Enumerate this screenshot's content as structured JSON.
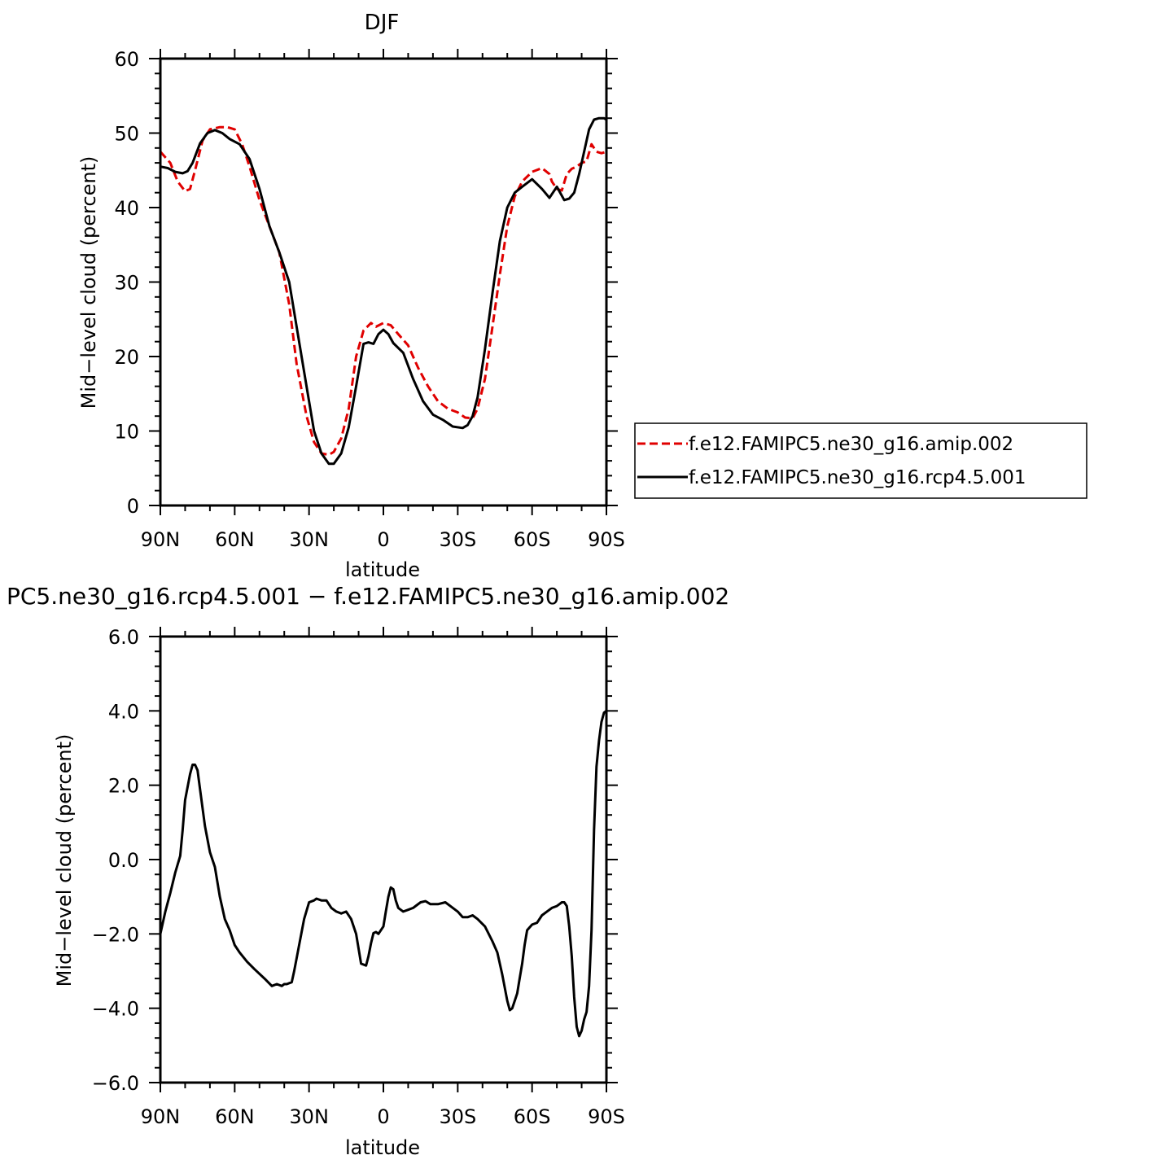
{
  "chart_data": [
    {
      "type": "line",
      "title": "DJF",
      "xlabel": "latitude",
      "ylabel": "Mid−level cloud (percent)",
      "xlim": [
        90,
        -90
      ],
      "ylim": [
        0,
        60
      ],
      "xticks": [
        {
          "value": 90,
          "label": "90N"
        },
        {
          "value": 60,
          "label": "60N"
        },
        {
          "value": 30,
          "label": "30N"
        },
        {
          "value": 0,
          "label": "0"
        },
        {
          "value": -30,
          "label": "30S"
        },
        {
          "value": -60,
          "label": "60S"
        },
        {
          "value": -90,
          "label": "90S"
        }
      ],
      "yticks": [
        {
          "value": 0,
          "label": "0"
        },
        {
          "value": 10,
          "label": "10"
        },
        {
          "value": 20,
          "label": "20"
        },
        {
          "value": 30,
          "label": "30"
        },
        {
          "value": 40,
          "label": "40"
        },
        {
          "value": 50,
          "label": "50"
        },
        {
          "value": 60,
          "label": "60"
        }
      ],
      "legend_position": "right",
      "series": [
        {
          "name": "f.e12.FAMIPC5.ne30_g16.amip.002",
          "color": "#e00000",
          "dash": "dashed",
          "x": [
            90,
            86,
            83,
            80,
            78,
            76,
            73,
            70,
            66,
            63,
            60,
            57,
            54,
            50,
            46,
            42,
            38,
            35,
            31,
            28,
            25,
            22,
            20,
            17,
            14,
            11,
            8,
            5,
            3,
            0,
            -3,
            -6,
            -10,
            -14,
            -18,
            -22,
            -26,
            -30,
            -33,
            -36,
            -38,
            -41,
            -44,
            -47,
            -50,
            -53,
            -56,
            -60,
            -64,
            -67,
            -68,
            -70,
            -72,
            -74,
            -76,
            -78,
            -80,
            -82,
            -84,
            -86,
            -88,
            -90
          ],
          "y": [
            47.5,
            46,
            43.5,
            42.2,
            42.5,
            45,
            49,
            50.5,
            50.8,
            50.8,
            50.5,
            48.5,
            45.5,
            41,
            37.5,
            34,
            27,
            19,
            12,
            8.5,
            7,
            6.8,
            7.2,
            9,
            13,
            20,
            23.5,
            24.5,
            24,
            24.5,
            24.2,
            23,
            21.5,
            18.5,
            16,
            14,
            13,
            12.5,
            11.8,
            11.7,
            13,
            17,
            24,
            31,
            37.5,
            41.5,
            43.5,
            44.8,
            45.3,
            44.5,
            43.5,
            42.5,
            42.3,
            44.5,
            45.2,
            45.5,
            46,
            46.2,
            48.5,
            47.5,
            47.3,
            47.5
          ]
        },
        {
          "name": "f.e12.FAMIPC5.ne30_g16.rcp4.5.001",
          "color": "#000000",
          "dash": "solid",
          "x": [
            90,
            87,
            84,
            81,
            79,
            77,
            74,
            71,
            68,
            65,
            62,
            58,
            54,
            50,
            46,
            42,
            38,
            35,
            31,
            28,
            25,
            22,
            20,
            17,
            14,
            11,
            8,
            6,
            4,
            2,
            0,
            -2,
            -4,
            -8,
            -12,
            -16,
            -20,
            -24,
            -28,
            -32,
            -34,
            -36,
            -38,
            -41,
            -44,
            -47,
            -50,
            -53,
            -56,
            -60,
            -64,
            -67,
            -70,
            -73,
            -75,
            -77,
            -79,
            -81,
            -83,
            -85,
            -87,
            -89,
            -90
          ],
          "y": [
            45.5,
            45.3,
            44.8,
            44.6,
            44.9,
            46,
            48.6,
            50,
            50.4,
            50,
            49.2,
            48.5,
            46.5,
            42.5,
            37.5,
            34,
            30,
            24,
            16,
            10,
            7,
            5.6,
            5.6,
            7,
            10.5,
            16,
            21.7,
            21.9,
            21.7,
            23,
            23.6,
            23,
            21.8,
            20.5,
            17,
            14,
            12.2,
            11.5,
            10.6,
            10.4,
            10.8,
            12,
            14.5,
            21,
            28.5,
            35.5,
            40,
            42,
            42.8,
            43.8,
            42.5,
            41.3,
            42.8,
            41,
            41.2,
            42,
            44.5,
            47.5,
            50.5,
            51.8,
            52,
            52,
            51.8
          ]
        }
      ]
    },
    {
      "type": "line",
      "title": "PC5.ne30_g16.rcp4.5.001 − f.e12.FAMIPC5.ne30_g16.amip.002",
      "xlabel": "latitude",
      "ylabel": "Mid−level cloud (percent)",
      "xlim": [
        90,
        -90
      ],
      "ylim": [
        -6,
        6
      ],
      "xticks": [
        {
          "value": 90,
          "label": "90N"
        },
        {
          "value": 60,
          "label": "60N"
        },
        {
          "value": 30,
          "label": "30N"
        },
        {
          "value": 0,
          "label": "0"
        },
        {
          "value": -30,
          "label": "30S"
        },
        {
          "value": -60,
          "label": "60S"
        },
        {
          "value": -90,
          "label": "90S"
        }
      ],
      "yticks": [
        {
          "value": -6,
          "label": "−6.0"
        },
        {
          "value": -4,
          "label": "−4.0"
        },
        {
          "value": -2,
          "label": "−2.0"
        },
        {
          "value": 0,
          "label": "0.0"
        },
        {
          "value": 2,
          "label": "2.0"
        },
        {
          "value": 4,
          "label": "4.0"
        },
        {
          "value": 6,
          "label": "6.0"
        }
      ],
      "series": [
        {
          "color": "#000000",
          "dash": "solid",
          "x": [
            90,
            88,
            86,
            84,
            82,
            81,
            80,
            78,
            77,
            76,
            75,
            74,
            72,
            70,
            68,
            66,
            64,
            62,
            60,
            58,
            55,
            52,
            48,
            45,
            43,
            41,
            40,
            39,
            37,
            36,
            34,
            32,
            30,
            28,
            27,
            25,
            23,
            21,
            19,
            17,
            15,
            13,
            11,
            9,
            7,
            6,
            5,
            4,
            3,
            2,
            0,
            -1,
            -2,
            -3,
            -4,
            -5,
            -6,
            -8,
            -10,
            -12,
            -15,
            -17,
            -19,
            -22,
            -25,
            -27,
            -30,
            -32,
            -34,
            -36,
            -38,
            -41,
            -44,
            -46,
            -48,
            -50,
            -51,
            -52,
            -54,
            -55,
            -56,
            -57,
            -58,
            -60,
            -62,
            -64,
            -66,
            -68,
            -70,
            -71,
            -72,
            -73,
            -74,
            -75,
            -76,
            -77,
            -78,
            -79,
            -80,
            -81,
            -82,
            -83,
            -84,
            -85,
            -86,
            -87,
            -88,
            -89,
            -90
          ],
          "y": [
            -2.0,
            -1.4,
            -0.9,
            -0.35,
            0.1,
            0.8,
            1.6,
            2.3,
            2.55,
            2.55,
            2.4,
            1.9,
            0.9,
            0.2,
            -0.2,
            -1.0,
            -1.6,
            -1.9,
            -2.3,
            -2.5,
            -2.75,
            -2.95,
            -3.2,
            -3.4,
            -3.35,
            -3.4,
            -3.35,
            -3.35,
            -3.3,
            -3.0,
            -2.3,
            -1.6,
            -1.15,
            -1.1,
            -1.05,
            -1.1,
            -1.1,
            -1.3,
            -1.4,
            -1.45,
            -1.4,
            -1.6,
            -2.0,
            -2.8,
            -2.85,
            -2.6,
            -2.25,
            -1.98,
            -1.95,
            -2.0,
            -1.8,
            -1.4,
            -1.0,
            -0.75,
            -0.8,
            -1.1,
            -1.3,
            -1.4,
            -1.35,
            -1.3,
            -1.15,
            -1.12,
            -1.2,
            -1.2,
            -1.15,
            -1.25,
            -1.4,
            -1.55,
            -1.55,
            -1.5,
            -1.6,
            -1.8,
            -2.2,
            -2.5,
            -3.1,
            -3.8,
            -4.05,
            -4.0,
            -3.6,
            -3.2,
            -2.8,
            -2.3,
            -1.9,
            -1.75,
            -1.7,
            -1.5,
            -1.4,
            -1.3,
            -1.25,
            -1.2,
            -1.15,
            -1.15,
            -1.25,
            -1.8,
            -2.6,
            -3.7,
            -4.5,
            -4.75,
            -4.6,
            -4.3,
            -4.1,
            -3.4,
            -1.9,
            0.8,
            2.5,
            3.2,
            3.7,
            3.95,
            4.0
          ]
        }
      ]
    }
  ]
}
